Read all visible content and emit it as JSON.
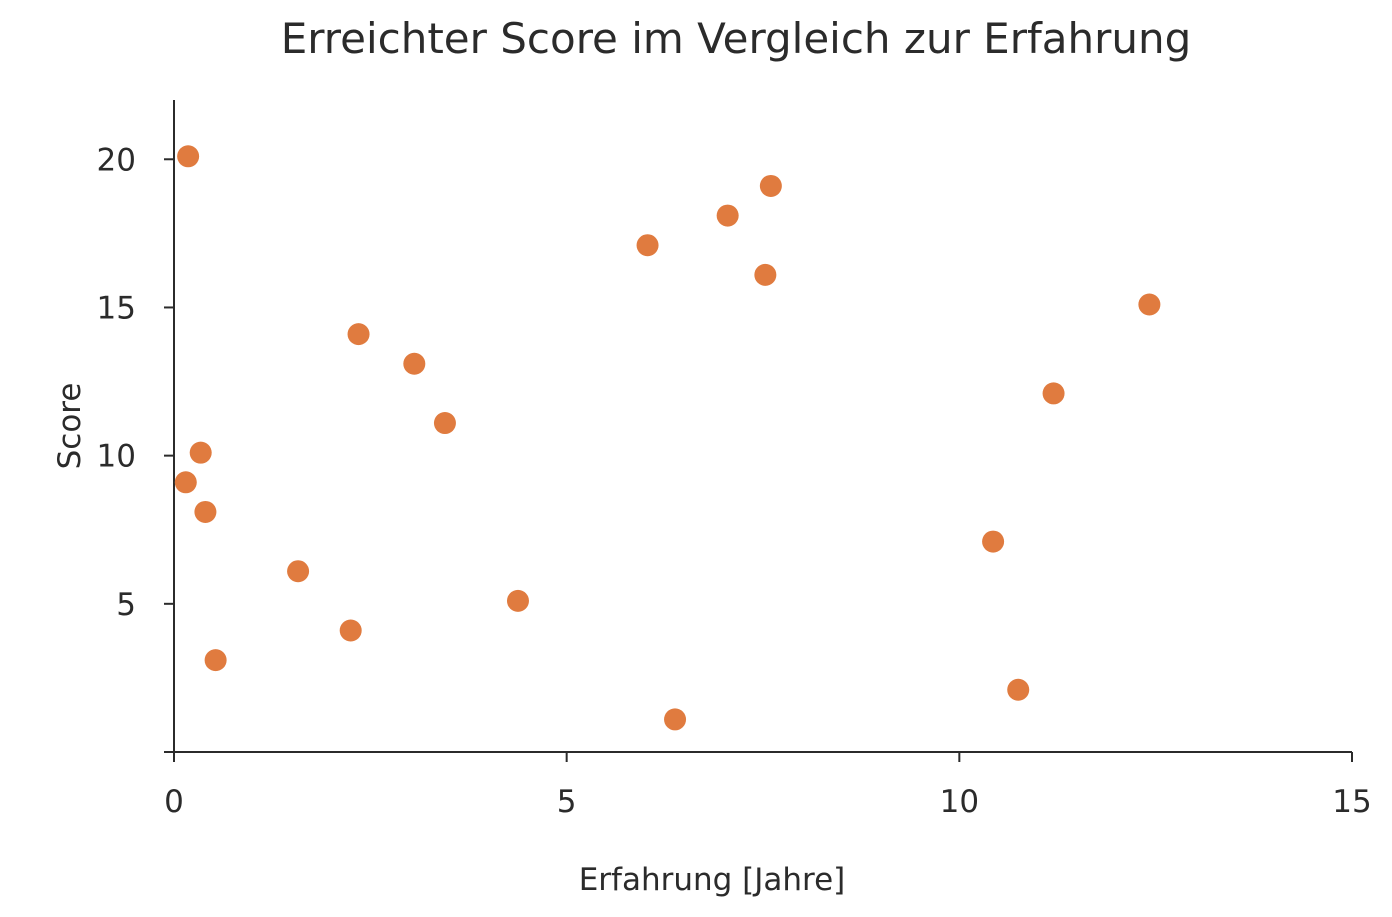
{
  "chart_data": {
    "type": "scatter",
    "title": "Erreichter Score im Vergleich zur Erfahrung",
    "xlabel": "Erfahrung [Jahre]",
    "ylabel": "Score",
    "xlim": [
      0,
      15
    ],
    "ylim": [
      0,
      22
    ],
    "xticks": [
      0,
      5,
      10,
      15
    ],
    "yticks": [
      5,
      10,
      15,
      20
    ],
    "grid": false,
    "marker_color": "#E07B3F",
    "points": [
      {
        "x": 0.18,
        "y": 20.1
      },
      {
        "x": 0.34,
        "y": 10.1
      },
      {
        "x": 0.15,
        "y": 9.1
      },
      {
        "x": 0.4,
        "y": 8.1
      },
      {
        "x": 0.53,
        "y": 3.1
      },
      {
        "x": 1.58,
        "y": 6.1
      },
      {
        "x": 2.35,
        "y": 14.1
      },
      {
        "x": 2.25,
        "y": 4.1
      },
      {
        "x": 3.06,
        "y": 13.1
      },
      {
        "x": 3.45,
        "y": 11.1
      },
      {
        "x": 4.38,
        "y": 5.1
      },
      {
        "x": 6.03,
        "y": 17.1
      },
      {
        "x": 6.38,
        "y": 1.1
      },
      {
        "x": 7.05,
        "y": 18.1
      },
      {
        "x": 7.53,
        "y": 16.1
      },
      {
        "x": 7.6,
        "y": 19.1
      },
      {
        "x": 10.43,
        "y": 7.1
      },
      {
        "x": 10.75,
        "y": 2.1
      },
      {
        "x": 11.2,
        "y": 12.1
      },
      {
        "x": 12.42,
        "y": 15.1
      }
    ]
  }
}
